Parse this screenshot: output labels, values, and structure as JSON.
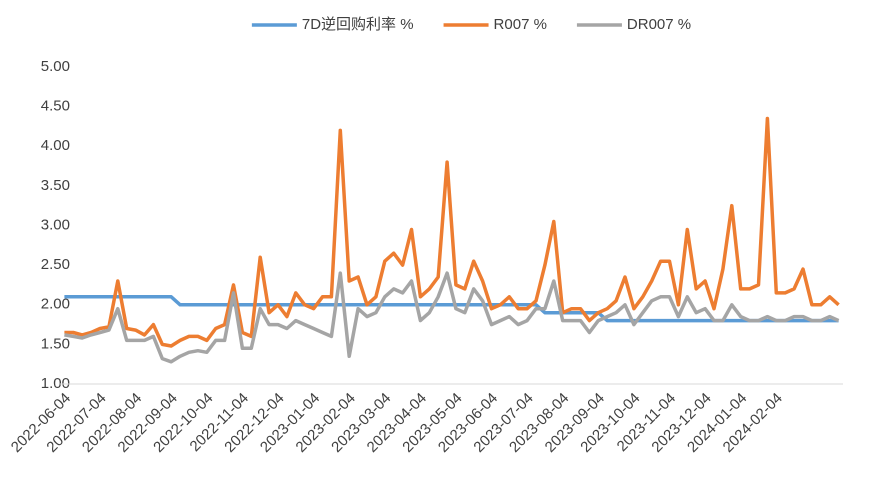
{
  "chart_data": {
    "type": "line",
    "categories": [
      "2022-06-04",
      null,
      null,
      null,
      "2022-07-04",
      null,
      null,
      null,
      "2022-08-04",
      null,
      null,
      null,
      "2022-09-04",
      null,
      null,
      null,
      "2022-10-04",
      null,
      null,
      null,
      "2022-11-04",
      null,
      null,
      null,
      "2022-12-04",
      null,
      null,
      null,
      "2023-01-04",
      null,
      null,
      null,
      "2023-02-04",
      null,
      null,
      null,
      "2023-03-04",
      null,
      null,
      null,
      "2023-04-04",
      null,
      null,
      null,
      "2023-05-04",
      null,
      null,
      null,
      "2023-06-04",
      null,
      null,
      null,
      "2023-07-04",
      null,
      null,
      null,
      "2023-08-04",
      null,
      null,
      null,
      "2023-09-04",
      null,
      null,
      null,
      "2023-10-04",
      null,
      null,
      null,
      "2023-11-04",
      null,
      null,
      null,
      "2023-12-04",
      null,
      null,
      null,
      "2024-01-04",
      null,
      null,
      null,
      "2024-02-04",
      null,
      null,
      null,
      null,
      null,
      null,
      null
    ],
    "series": [
      {
        "name": "7D逆回购利率 %",
        "color": "#5b9bd5",
        "values": [
          2.1,
          2.1,
          2.1,
          2.1,
          2.1,
          2.1,
          2.1,
          2.1,
          2.1,
          2.1,
          2.1,
          2.1,
          2.1,
          2.0,
          2.0,
          2.0,
          2.0,
          2.0,
          2.0,
          2.0,
          2.0,
          2.0,
          2.0,
          2.0,
          2.0,
          2.0,
          2.0,
          2.0,
          2.0,
          2.0,
          2.0,
          2.0,
          2.0,
          2.0,
          2.0,
          2.0,
          2.0,
          2.0,
          2.0,
          2.0,
          2.0,
          2.0,
          2.0,
          2.0,
          2.0,
          2.0,
          2.0,
          2.0,
          2.0,
          2.0,
          2.0,
          2.0,
          2.0,
          2.0,
          1.9,
          1.9,
          1.9,
          1.9,
          1.9,
          1.9,
          1.9,
          1.8,
          1.8,
          1.8,
          1.8,
          1.8,
          1.8,
          1.8,
          1.8,
          1.8,
          1.8,
          1.8,
          1.8,
          1.8,
          1.8,
          1.8,
          1.8,
          1.8,
          1.8,
          1.8,
          1.8,
          1.8,
          1.8,
          1.8,
          1.8,
          1.8,
          1.8,
          1.8
        ]
      },
      {
        "name": "R007 %",
        "color": "#ed7d31",
        "values": [
          1.65,
          1.65,
          1.62,
          1.65,
          1.7,
          1.72,
          2.3,
          1.7,
          1.68,
          1.62,
          1.75,
          1.5,
          1.48,
          1.55,
          1.6,
          1.6,
          1.55,
          1.7,
          1.75,
          2.25,
          1.65,
          1.6,
          2.6,
          1.9,
          2.0,
          1.85,
          2.15,
          2.0,
          1.95,
          2.1,
          2.1,
          4.2,
          2.3,
          2.35,
          2.0,
          2.1,
          2.55,
          2.65,
          2.5,
          2.95,
          2.1,
          2.2,
          2.35,
          3.8,
          2.25,
          2.2,
          2.55,
          2.3,
          1.95,
          2.0,
          2.1,
          1.95,
          1.95,
          2.05,
          2.5,
          3.05,
          1.9,
          1.95,
          1.95,
          1.8,
          1.9,
          1.95,
          2.05,
          2.35,
          1.95,
          2.1,
          2.3,
          2.55,
          2.55,
          2.0,
          2.95,
          2.2,
          2.3,
          1.95,
          2.45,
          3.25,
          2.2,
          2.2,
          2.25,
          4.35,
          2.15,
          2.15,
          2.2,
          2.45,
          2.0,
          2.0,
          2.1,
          2.0
        ]
      },
      {
        "name": "DR007 %",
        "color": "#a5a5a5",
        "values": [
          1.62,
          1.6,
          1.58,
          1.62,
          1.65,
          1.68,
          1.95,
          1.55,
          1.55,
          1.55,
          1.6,
          1.32,
          1.28,
          1.35,
          1.4,
          1.42,
          1.4,
          1.55,
          1.55,
          2.15,
          1.45,
          1.45,
          1.95,
          1.75,
          1.75,
          1.7,
          1.8,
          1.75,
          1.7,
          1.65,
          1.6,
          2.4,
          1.35,
          1.95,
          1.85,
          1.9,
          2.1,
          2.2,
          2.15,
          2.3,
          1.8,
          1.9,
          2.1,
          2.4,
          1.95,
          1.9,
          2.2,
          2.05,
          1.75,
          1.8,
          1.85,
          1.75,
          1.8,
          1.95,
          1.95,
          2.3,
          1.8,
          1.8,
          1.8,
          1.65,
          1.8,
          1.85,
          1.9,
          2.0,
          1.75,
          1.9,
          2.05,
          2.1,
          2.1,
          1.85,
          2.1,
          1.9,
          1.95,
          1.8,
          1.8,
          2.0,
          1.85,
          1.8,
          1.8,
          1.85,
          1.8,
          1.8,
          1.85,
          1.85,
          1.8,
          1.8,
          1.85,
          1.8
        ]
      }
    ],
    "ylim": [
      1,
      5
    ],
    "yticks": [
      {
        "value": 1,
        "label": "1.00"
      },
      {
        "value": 1.5,
        "label": "1.50"
      },
      {
        "value": 2,
        "label": "2.00"
      },
      {
        "value": 2.5,
        "label": "2.50"
      },
      {
        "value": 3,
        "label": "3.00"
      },
      {
        "value": 3.5,
        "label": "3.50"
      },
      {
        "value": 4,
        "label": "4.00"
      },
      {
        "value": 4.5,
        "label": "4.50"
      },
      {
        "value": 5,
        "label": "5.00"
      }
    ],
    "grid": false,
    "legend": "top"
  }
}
